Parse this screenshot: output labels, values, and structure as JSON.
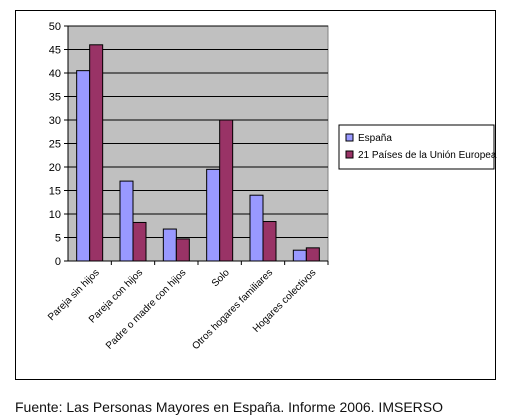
{
  "chart_data": {
    "type": "bar",
    "categories": [
      "Pareja sin hijos",
      "Pareja con hijos",
      "Padre o madre con hijos",
      "Solo",
      "Otros hogares familiares",
      "Hogares colectivos"
    ],
    "series": [
      {
        "name": "España",
        "values": [
          40.5,
          17,
          6.8,
          19.5,
          14,
          2.3
        ],
        "color": "#9999ff"
      },
      {
        "name": "21 Países de la Unión Europea",
        "values": [
          46,
          8.2,
          4.7,
          30,
          8.4,
          2.8
        ],
        "color": "#993366"
      }
    ],
    "ylim": [
      0,
      50
    ],
    "yticks": [
      0,
      5,
      10,
      15,
      20,
      25,
      30,
      35,
      40,
      45,
      50
    ],
    "grid": true,
    "plot_background": "#c0c0c0",
    "legend_position": "right"
  },
  "source": "Fuente: Las Personas Mayores en España. Informe 2006. IMSERSO"
}
